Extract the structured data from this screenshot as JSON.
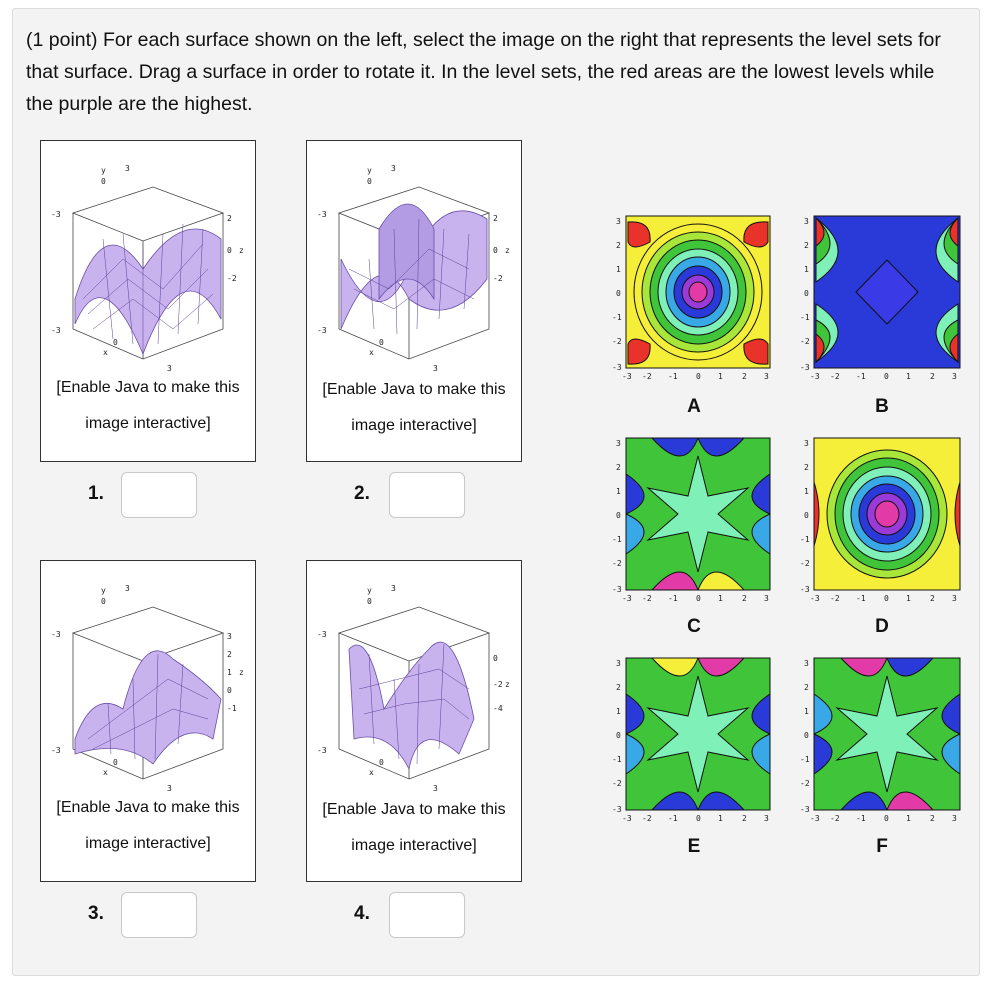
{
  "problem": {
    "prompt": "(1 point) For each surface shown on the left, select the image on the right that represents the level sets for that surface. Drag a surface in order to rotate it. In the level sets, the red areas are the lowest levels while the purple are the highest."
  },
  "surfaces": [
    {
      "number_label": "1.",
      "applet_line1": "[Enable Java to make this",
      "applet_line2": "image interactive]",
      "answer": "",
      "z_ticks": [
        "2",
        "0",
        "-2"
      ]
    },
    {
      "number_label": "2.",
      "applet_line1": "[Enable Java to make this",
      "applet_line2": "image interactive]",
      "answer": "",
      "z_ticks": [
        "2",
        "0",
        "-2"
      ]
    },
    {
      "number_label": "3.",
      "applet_line1": "[Enable Java to make this",
      "applet_line2": "image interactive]",
      "answer": "",
      "z_ticks": [
        "3",
        "2",
        "1",
        "0",
        "-1"
      ]
    },
    {
      "number_label": "4.",
      "applet_line1": "[Enable Java to make this",
      "applet_line2": "image interactive]",
      "answer": "",
      "z_ticks": [
        "0",
        "-2",
        "-4"
      ]
    }
  ],
  "surface_axis": {
    "y_label": "y",
    "x_label": "x",
    "z_label": "z",
    "y_ticks": [
      "0",
      "3"
    ],
    "x_ticks": [
      "-3",
      "0",
      "3"
    ],
    "left_tick": "-3"
  },
  "level_sets": [
    {
      "letter": "A",
      "pattern": "rings-center-high"
    },
    {
      "letter": "B",
      "pattern": "diamond-center-low"
    },
    {
      "letter": "C",
      "pattern": "star"
    },
    {
      "letter": "D",
      "pattern": "rings-center-high-yellow"
    },
    {
      "letter": "E",
      "pattern": "star"
    },
    {
      "letter": "F",
      "pattern": "star"
    }
  ],
  "plot_axis": {
    "ticks": [
      "-3",
      "-2",
      "-1",
      "0",
      "1",
      "2",
      "3"
    ]
  },
  "colors": {
    "surface_fill": "#c9b3ee",
    "contour_red": "#e8322a",
    "contour_purple": "#e23aa6",
    "contour_blue": "#2a3ad8",
    "contour_cyan": "#7ef0b8"
  }
}
